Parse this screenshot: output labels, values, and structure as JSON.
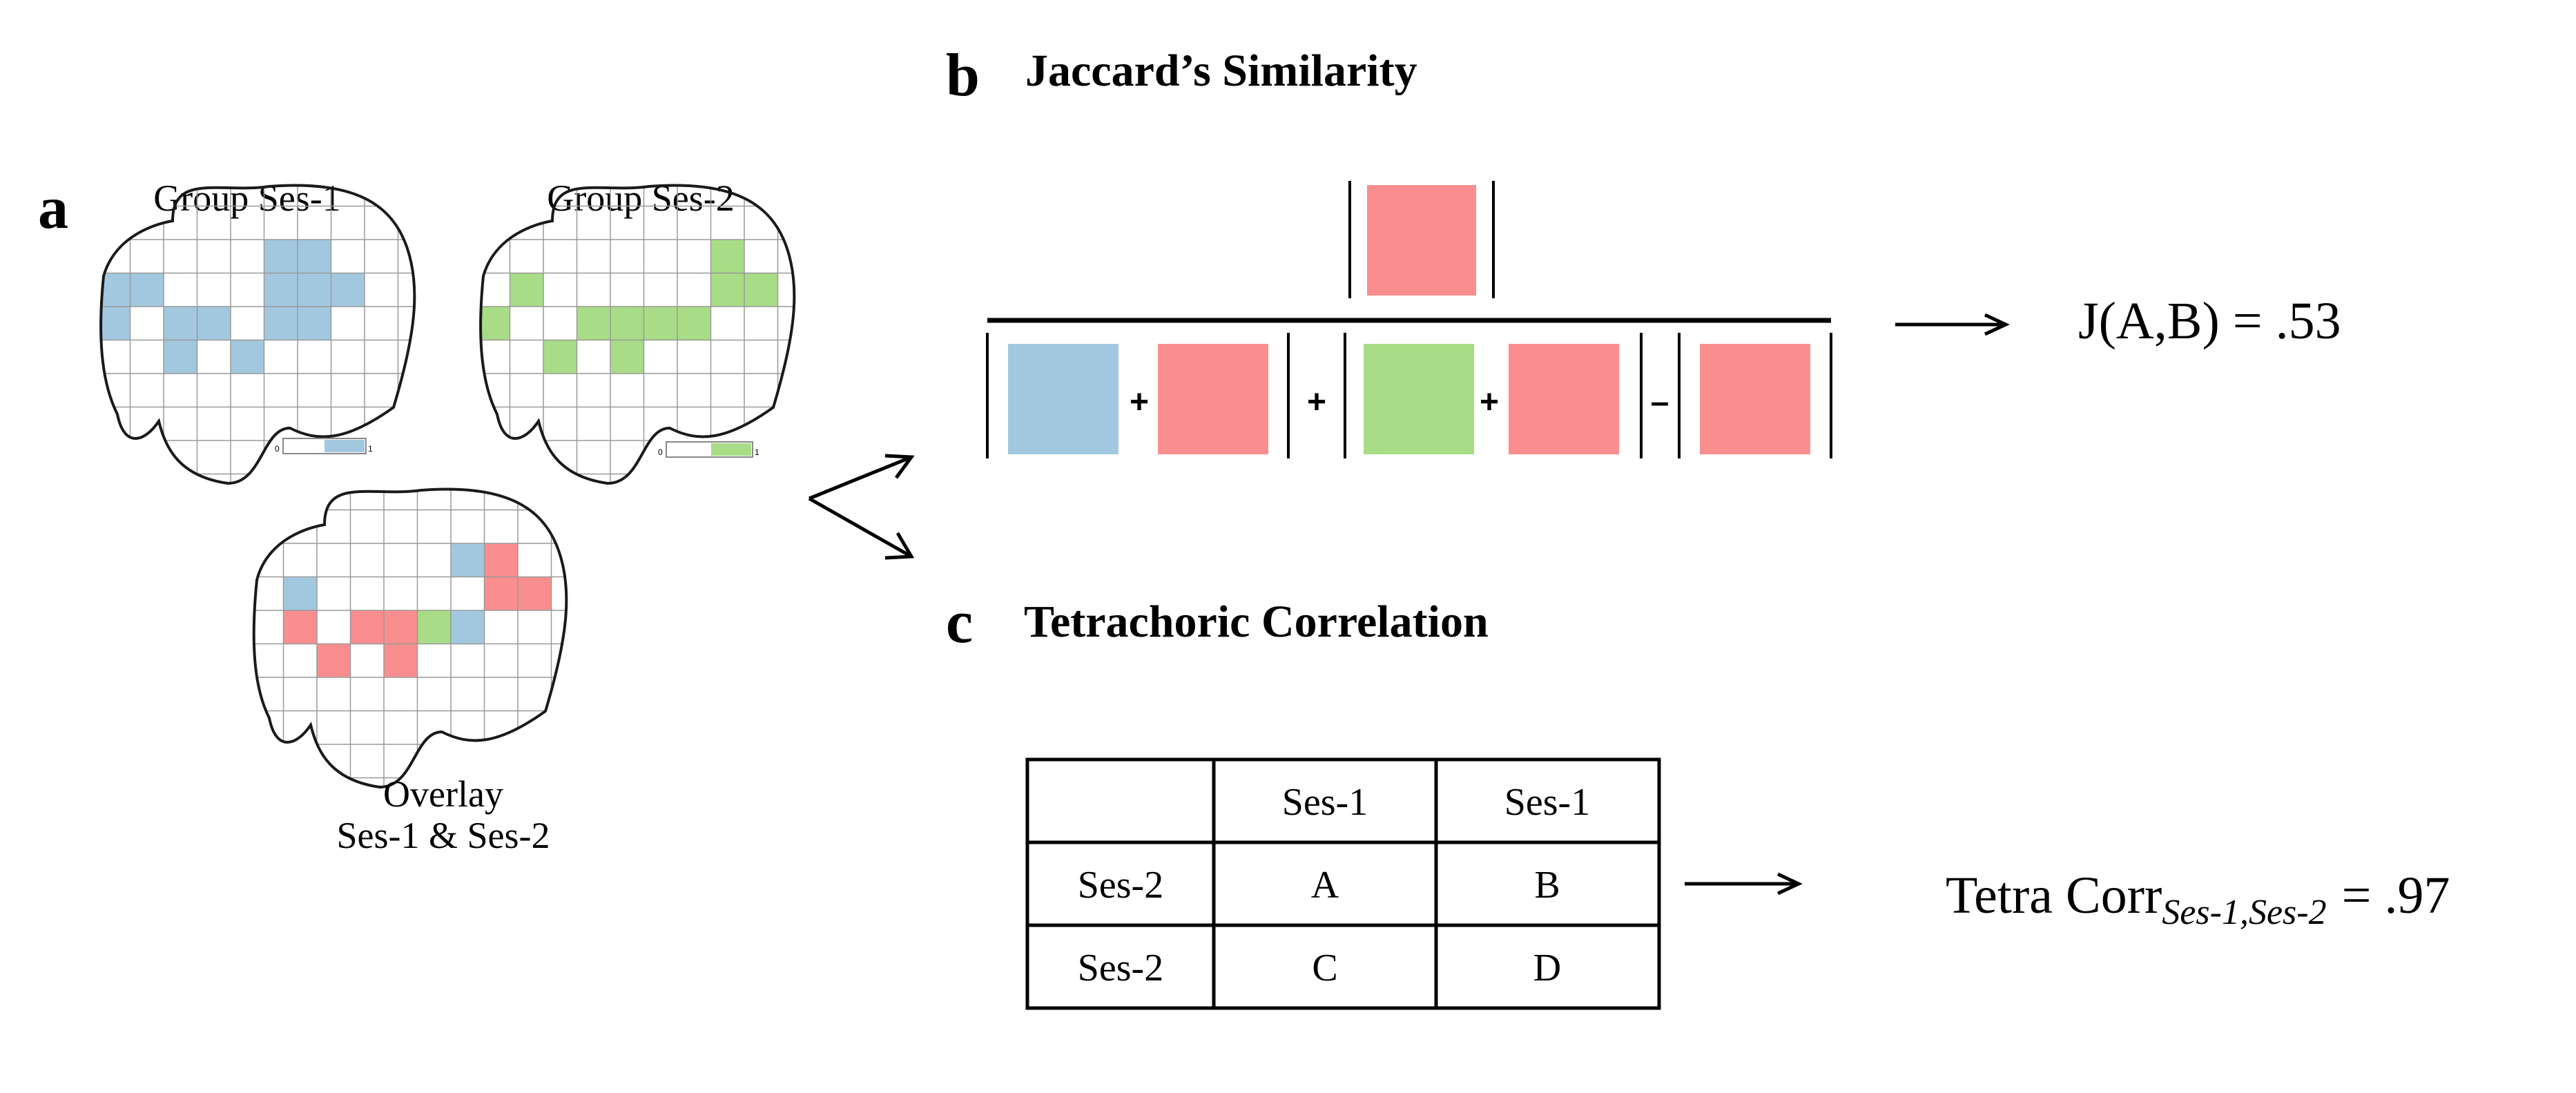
{
  "colors": {
    "session1": "#a2c8df",
    "session2": "#a8dc86",
    "overlap": "#fa8e8e",
    "grid_line": "#999999",
    "outline": "#1a1a1a"
  },
  "panel_a": {
    "letter": "a",
    "brain_ses1": {
      "title": "Group Ses-1",
      "colorbar_min": "0",
      "colorbar_max": "1",
      "filled_cells": [
        [
          5,
          2
        ],
        [
          6,
          2
        ],
        [
          6,
          3
        ],
        [
          7,
          3
        ],
        [
          5,
          3
        ],
        [
          0,
          3
        ],
        [
          1,
          3
        ],
        [
          0,
          4
        ],
        [
          2,
          4
        ],
        [
          3,
          4
        ],
        [
          5,
          4
        ],
        [
          6,
          4
        ],
        [
          2,
          5
        ],
        [
          4,
          5
        ],
        [
          2,
          4
        ]
      ]
    },
    "brain_ses2": {
      "title": "Group Ses-2",
      "colorbar_min": "0",
      "colorbar_max": "1",
      "filled_cells": [
        [
          7,
          2
        ],
        [
          7,
          3
        ],
        [
          8,
          3
        ],
        [
          1,
          3
        ],
        [
          0,
          4
        ],
        [
          3,
          4
        ],
        [
          4,
          4
        ],
        [
          5,
          4
        ],
        [
          6,
          4
        ],
        [
          2,
          5
        ],
        [
          4,
          5
        ]
      ]
    },
    "brain_overlay": {
      "title_line1": "Overlay",
      "title_line2": "Ses-1 &  Ses-2",
      "blue_cells": [
        [
          6,
          2
        ],
        [
          1,
          3
        ],
        [
          6,
          4
        ]
      ],
      "pink_cells": [
        [
          7,
          2
        ],
        [
          7,
          3
        ],
        [
          8,
          3
        ],
        [
          1,
          4
        ],
        [
          3,
          4
        ],
        [
          4,
          4
        ],
        [
          2,
          5
        ],
        [
          4,
          5
        ]
      ],
      "green_cells": [
        [
          5,
          4
        ]
      ]
    }
  },
  "panel_b": {
    "letter": "b",
    "title": "Jaccard’s Similarity",
    "signs": [
      "+",
      "+",
      "+",
      "–"
    ],
    "result": "J(A,B) = .53"
  },
  "panel_c": {
    "letter": "c",
    "title": "Tetrachoric Correlation",
    "table": {
      "header": [
        "",
        "Ses-1",
        "Ses-1"
      ],
      "rows": [
        [
          "Ses-2",
          "A",
          "B"
        ],
        [
          "Ses-2",
          "C",
          "D"
        ]
      ]
    },
    "result_main": "Tetra Corr",
    "result_sub": "Ses-1,Ses-2",
    "result_value": "=  .97"
  }
}
